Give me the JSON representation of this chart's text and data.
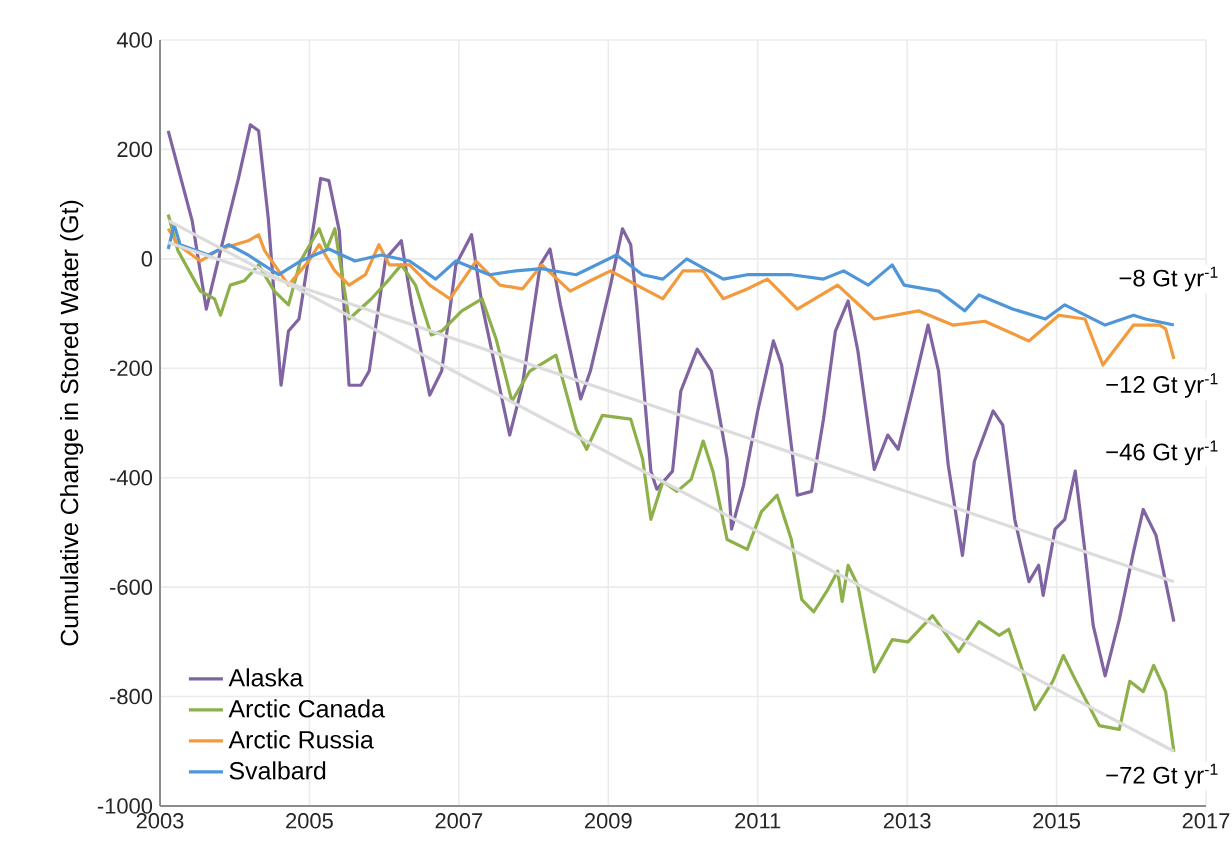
{
  "chart_data": {
    "type": "line",
    "ylabel": "Cumulative Change in Stored Water (Gt)",
    "xlim": [
      2003,
      2017
    ],
    "xticks": [
      2003,
      2005,
      2007,
      2009,
      2011,
      2013,
      2015,
      2017
    ],
    "ylim": [
      -1000,
      400
    ],
    "yticks": [
      -1000,
      -800,
      -600,
      -400,
      -200,
      0,
      200,
      400
    ],
    "grid": true,
    "legend": "bottom left",
    "marker": "none",
    "series": [
      {
        "name": "Alaska",
        "color": "#8064a2",
        "x": [
          2003.11,
          2003.43,
          2003.62,
          2003.81,
          2004.05,
          2004.21,
          2004.32,
          2004.45,
          2004.62,
          2004.72,
          2004.86,
          2005.07,
          2005.15,
          2005.26,
          2005.4,
          2005.53,
          2005.69,
          2005.8,
          2006.02,
          2006.23,
          2006.37,
          2006.61,
          2006.77,
          2006.96,
          2007.17,
          2007.31,
          2007.68,
          2007.85,
          2008.09,
          2008.22,
          2008.36,
          2008.63,
          2008.76,
          2009.03,
          2009.19,
          2009.3,
          2009.38,
          2009.57,
          2009.65,
          2009.86,
          2009.97,
          2010.19,
          2010.38,
          2010.59,
          2010.65,
          2010.81,
          2011.0,
          2011.21,
          2011.32,
          2011.53,
          2011.72,
          2011.88,
          2012.04,
          2012.21,
          2012.34,
          2012.56,
          2012.74,
          2012.88,
          2013.07,
          2013.28,
          2013.42,
          2013.55,
          2013.74,
          2013.9,
          2014.15,
          2014.28,
          2014.44,
          2014.63,
          2014.76,
          2014.82,
          2014.98,
          2015.11,
          2015.25,
          2015.38,
          2015.49,
          2015.65,
          2015.84,
          2016.03,
          2016.16,
          2016.33,
          2016.57
        ],
        "values": [
          234,
          70,
          -92,
          15,
          147,
          245,
          234,
          73,
          -231,
          -132,
          -110,
          73,
          147,
          143,
          51,
          -231,
          -231,
          -205,
          0,
          33,
          -84,
          -249,
          -205,
          -11,
          44,
          -84,
          -322,
          -231,
          -11,
          18,
          -84,
          -256,
          -205,
          -48,
          55,
          26,
          -84,
          -388,
          -421,
          -388,
          -242,
          -165,
          -205,
          -366,
          -494,
          -414,
          -278,
          -150,
          -194,
          -432,
          -425,
          -293,
          -132,
          -77,
          -168,
          -385,
          -322,
          -348,
          -242,
          -121,
          -205,
          -377,
          -542,
          -370,
          -278,
          -304,
          -476,
          -590,
          -560,
          -615,
          -494,
          -476,
          -388,
          -535,
          -670,
          -762,
          -659,
          -535,
          -458,
          -505,
          -663
        ]
      },
      {
        "name": "Arctic Canada",
        "color": "#8db04a",
        "x": [
          2003.11,
          2003.24,
          2003.54,
          2003.73,
          2003.81,
          2003.94,
          2004.13,
          2004.32,
          2004.53,
          2004.72,
          2004.88,
          2005.13,
          2005.23,
          2005.34,
          2005.53,
          2005.83,
          2006.07,
          2006.23,
          2006.42,
          2006.63,
          2006.77,
          2007.04,
          2007.31,
          2007.5,
          2007.71,
          2007.95,
          2008.3,
          2008.57,
          2008.71,
          2008.92,
          2009.3,
          2009.46,
          2009.57,
          2009.73,
          2009.92,
          2010.11,
          2010.27,
          2010.4,
          2010.59,
          2010.86,
          2011.05,
          2011.26,
          2011.45,
          2011.59,
          2011.75,
          2011.94,
          2012.07,
          2012.13,
          2012.21,
          2012.34,
          2012.56,
          2012.8,
          2013.01,
          2013.34,
          2013.69,
          2013.96,
          2014.23,
          2014.36,
          2014.55,
          2014.71,
          2014.95,
          2015.09,
          2015.25,
          2015.57,
          2015.84,
          2015.98,
          2016.16,
          2016.3,
          2016.46,
          2016.57
        ],
        "values": [
          81,
          15,
          -59,
          -73,
          -103,
          -48,
          -40,
          -11,
          -59,
          -84,
          -4,
          55,
          18,
          55,
          -110,
          -73,
          -37,
          -11,
          -48,
          -139,
          -132,
          -95,
          -73,
          -147,
          -260,
          -205,
          -176,
          -311,
          -348,
          -286,
          -293,
          -366,
          -476,
          -407,
          -425,
          -403,
          -333,
          -388,
          -513,
          -531,
          -462,
          -432,
          -513,
          -623,
          -645,
          -604,
          -571,
          -626,
          -560,
          -597,
          -755,
          -696,
          -700,
          -652,
          -718,
          -663,
          -688,
          -677,
          -755,
          -824,
          -772,
          -725,
          -769,
          -853,
          -860,
          -772,
          -791,
          -743,
          -791,
          -901
        ]
      },
      {
        "name": "Arctic Russia",
        "color": "#f39a3c",
        "x": [
          2003.11,
          2003.24,
          2003.54,
          2003.81,
          2004.18,
          2004.32,
          2004.4,
          2004.72,
          2004.99,
          2005.13,
          2005.34,
          2005.53,
          2005.75,
          2005.93,
          2006.07,
          2006.34,
          2006.61,
          2006.88,
          2007.23,
          2007.55,
          2007.85,
          2008.11,
          2008.49,
          2008.76,
          2009.03,
          2009.38,
          2009.73,
          2010.0,
          2010.27,
          2010.54,
          2010.86,
          2011.13,
          2011.53,
          2012.07,
          2012.56,
          2013.15,
          2013.61,
          2014.04,
          2014.63,
          2015.03,
          2015.38,
          2015.62,
          2016.03,
          2016.38,
          2016.46,
          2016.57
        ],
        "values": [
          55,
          26,
          -4,
          18,
          33,
          44,
          15,
          -48,
          -4,
          26,
          -22,
          -48,
          -29,
          26,
          -11,
          -11,
          -48,
          -73,
          -4,
          -48,
          -55,
          -11,
          -59,
          -40,
          -22,
          -48,
          -73,
          -22,
          -22,
          -73,
          -55,
          -37,
          -92,
          -48,
          -110,
          -95,
          -121,
          -114,
          -150,
          -103,
          -110,
          -194,
          -121,
          -121,
          -128,
          -183
        ]
      },
      {
        "name": "Svalbard",
        "color": "#4f96d8",
        "x": [
          2003.11,
          2003.19,
          2003.27,
          2003.65,
          2003.92,
          2004.18,
          2004.59,
          2004.88,
          2005.26,
          2005.61,
          2005.96,
          2006.34,
          2006.69,
          2006.96,
          2007.41,
          2007.76,
          2008.11,
          2008.57,
          2009.11,
          2009.46,
          2009.73,
          2010.05,
          2010.54,
          2010.86,
          2011.45,
          2011.88,
          2012.15,
          2012.48,
          2012.8,
          2012.96,
          2013.42,
          2013.77,
          2013.96,
          2014.42,
          2014.85,
          2015.11,
          2015.65,
          2016.03,
          2016.19,
          2016.57
        ],
        "values": [
          18,
          62,
          26,
          7,
          26,
          7,
          -29,
          -4,
          18,
          -4,
          7,
          -4,
          -37,
          -4,
          -29,
          -22,
          -18,
          -29,
          7,
          -29,
          -37,
          0,
          -37,
          -29,
          -29,
          -37,
          -22,
          -48,
          -11,
          -48,
          -59,
          -95,
          -66,
          -92,
          -110,
          -84,
          -121,
          -103,
          -110,
          -121
        ]
      },
      {
        "color": "#dcdcdc",
        "x": [
          2003.11,
          2016.57
        ],
        "values": [
          30,
          -590
        ]
      },
      {
        "color": "#dcdcdc",
        "x": [
          2003.11,
          2016.57
        ],
        "values": [
          70,
          -900
        ]
      }
    ],
    "annotations": [
      "−8 Gt yr$^{-1}$",
      "−12 Gt yr$^{-1}$",
      "−46 Gt yr$^{-1}$",
      "−72 Gt yr$^{-1}$"
    ]
  }
}
